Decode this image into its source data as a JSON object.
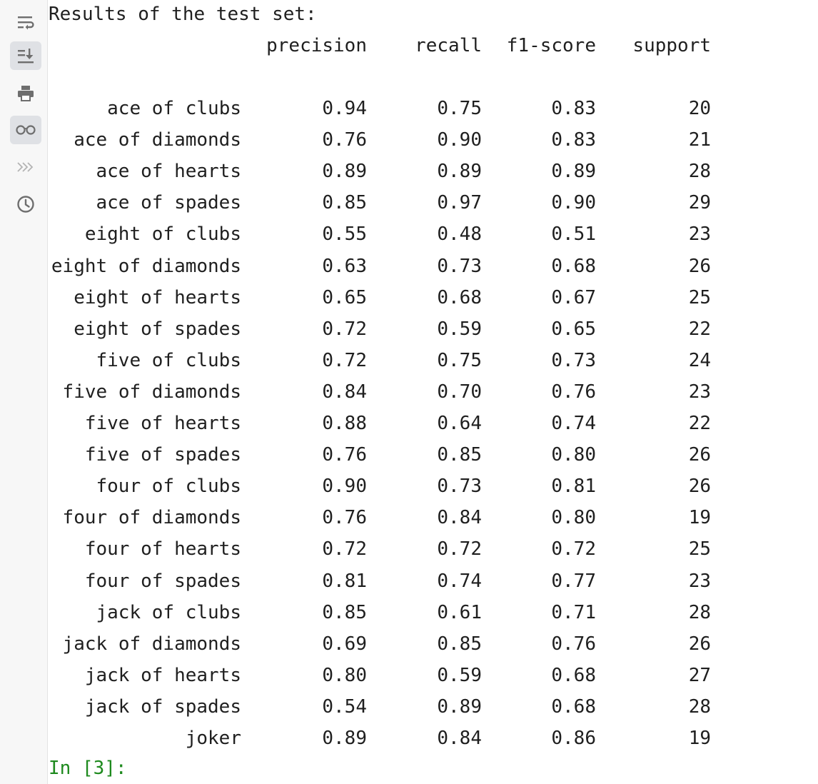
{
  "toolbar": {
    "icons": [
      "soft-wrap-icon",
      "scroll-to-end-icon",
      "print-icon",
      "glasses-icon",
      "execute-icon",
      "history-icon"
    ]
  },
  "output": {
    "heading": "Results of the test set:",
    "columns": [
      "precision",
      "recall",
      "f1-score",
      "support"
    ],
    "rows": [
      {
        "label": "ace of clubs",
        "precision": "0.94",
        "recall": "0.75",
        "f1": "0.83",
        "support": "20"
      },
      {
        "label": "ace of diamonds",
        "precision": "0.76",
        "recall": "0.90",
        "f1": "0.83",
        "support": "21"
      },
      {
        "label": "ace of hearts",
        "precision": "0.89",
        "recall": "0.89",
        "f1": "0.89",
        "support": "28"
      },
      {
        "label": "ace of spades",
        "precision": "0.85",
        "recall": "0.97",
        "f1": "0.90",
        "support": "29"
      },
      {
        "label": "eight of clubs",
        "precision": "0.55",
        "recall": "0.48",
        "f1": "0.51",
        "support": "23"
      },
      {
        "label": "eight of diamonds",
        "precision": "0.63",
        "recall": "0.73",
        "f1": "0.68",
        "support": "26"
      },
      {
        "label": "eight of hearts",
        "precision": "0.65",
        "recall": "0.68",
        "f1": "0.67",
        "support": "25"
      },
      {
        "label": "eight of spades",
        "precision": "0.72",
        "recall": "0.59",
        "f1": "0.65",
        "support": "22"
      },
      {
        "label": "five of clubs",
        "precision": "0.72",
        "recall": "0.75",
        "f1": "0.73",
        "support": "24"
      },
      {
        "label": "five of diamonds",
        "precision": "0.84",
        "recall": "0.70",
        "f1": "0.76",
        "support": "23"
      },
      {
        "label": "five of hearts",
        "precision": "0.88",
        "recall": "0.64",
        "f1": "0.74",
        "support": "22"
      },
      {
        "label": "five of spades",
        "precision": "0.76",
        "recall": "0.85",
        "f1": "0.80",
        "support": "26"
      },
      {
        "label": "four of clubs",
        "precision": "0.90",
        "recall": "0.73",
        "f1": "0.81",
        "support": "26"
      },
      {
        "label": "four of diamonds",
        "precision": "0.76",
        "recall": "0.84",
        "f1": "0.80",
        "support": "19"
      },
      {
        "label": "four of hearts",
        "precision": "0.72",
        "recall": "0.72",
        "f1": "0.72",
        "support": "25"
      },
      {
        "label": "four of spades",
        "precision": "0.81",
        "recall": "0.74",
        "f1": "0.77",
        "support": "23"
      },
      {
        "label": "jack of clubs",
        "precision": "0.85",
        "recall": "0.61",
        "f1": "0.71",
        "support": "28"
      },
      {
        "label": "jack of diamonds",
        "precision": "0.69",
        "recall": "0.85",
        "f1": "0.76",
        "support": "26"
      },
      {
        "label": "jack of hearts",
        "precision": "0.80",
        "recall": "0.59",
        "f1": "0.68",
        "support": "27"
      },
      {
        "label": "jack of spades",
        "precision": "0.54",
        "recall": "0.89",
        "f1": "0.68",
        "support": "28"
      },
      {
        "label": "joker",
        "precision": "0.89",
        "recall": "0.84",
        "f1": "0.86",
        "support": "19"
      }
    ],
    "prompt": "In [3]:"
  }
}
